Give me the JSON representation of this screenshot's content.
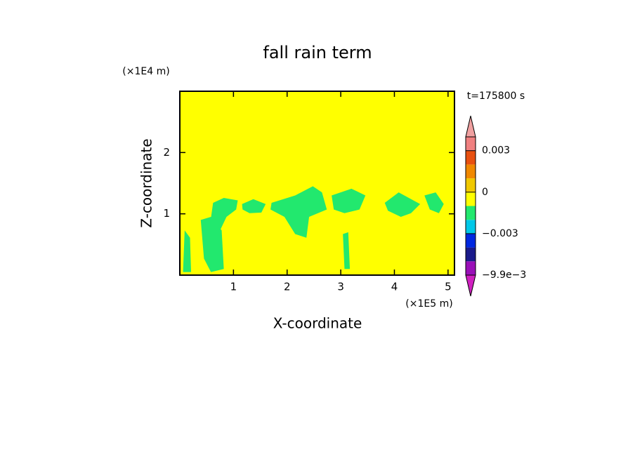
{
  "chart_data": {
    "type": "contour",
    "title": "fall rain term",
    "x_label": "X-coordinate",
    "y_label": "Z-coordinate",
    "x_unit": "(×1E5 m)",
    "y_unit": "(×1E4 m)",
    "time_label": "t=175800 s",
    "xlim": [
      0,
      5.12
    ],
    "ylim": [
      0,
      3
    ],
    "xticks": [
      1,
      2,
      3,
      4,
      5
    ],
    "yticks": [
      1,
      2
    ],
    "background_color": "#ffff00",
    "regions": [
      {
        "color": "#22e86e",
        "x": [
          0.62,
          0.82,
          1.08,
          1.05,
          0.87,
          0.75,
          0.65,
          0.58
        ],
        "z": [
          1.18,
          1.26,
          1.22,
          1.07,
          0.95,
          0.73,
          0.61,
          0.93
        ]
      },
      {
        "color": "#22e86e",
        "x": [
          0.39,
          0.58,
          0.78,
          0.82,
          0.58,
          0.45
        ],
        "z": [
          0.9,
          0.95,
          0.73,
          0.1,
          0.05,
          0.27
        ]
      },
      {
        "color": "#22e86e",
        "x": [
          0.09,
          0.19,
          0.21,
          0.06
        ],
        "z": [
          0.73,
          0.61,
          0.05,
          0.05
        ]
      },
      {
        "color": "#22e86e",
        "x": [
          1.16,
          1.37,
          1.6,
          1.52,
          1.3,
          1.17
        ],
        "z": [
          1.16,
          1.24,
          1.16,
          1.02,
          1.01,
          1.07
        ]
      },
      {
        "color": "#22e86e",
        "x": [
          1.71,
          2.15,
          2.48,
          2.65,
          2.74,
          2.41,
          2.36,
          2.15,
          1.95,
          1.69
        ],
        "z": [
          1.18,
          1.3,
          1.45,
          1.35,
          1.07,
          0.95,
          0.61,
          0.67,
          0.95,
          1.07
        ]
      },
      {
        "color": "#22e86e",
        "x": [
          2.83,
          3.2,
          3.46,
          3.35,
          3.07,
          2.87
        ],
        "z": [
          1.3,
          1.41,
          1.3,
          1.07,
          1.01,
          1.07
        ]
      },
      {
        "color": "#22e86e",
        "x": [
          3.04,
          3.14,
          3.17,
          3.07
        ],
        "z": [
          0.67,
          0.7,
          0.1,
          0.1
        ]
      },
      {
        "color": "#22e86e",
        "x": [
          3.82,
          4.08,
          4.48,
          4.31,
          4.12,
          3.88
        ],
        "z": [
          1.18,
          1.35,
          1.16,
          1.01,
          0.95,
          1.05
        ]
      },
      {
        "color": "#22e86e",
        "x": [
          4.56,
          4.77,
          4.92,
          4.83,
          4.66
        ],
        "z": [
          1.3,
          1.35,
          1.16,
          1.01,
          1.07
        ]
      }
    ],
    "colorbar": {
      "levels": [
        -0.0099,
        -0.006,
        -0.004,
        -0.003,
        -0.002,
        -0.001,
        0,
        0.001,
        0.002,
        0.003,
        0.004
      ],
      "colors": [
        "#9a10b8",
        "#1a1a8a",
        "#0028e0",
        "#00c8e8",
        "#22e86e",
        "#ffff00",
        "#f0c800",
        "#f08800",
        "#e85010",
        "#f08080"
      ],
      "below_color": "#d020c0",
      "above_color": "#f0a0a0",
      "ticks": [
        {
          "value": 0.003,
          "label": "0.003"
        },
        0,
        {
          "value": -0.003,
          "label": "−0.003"
        },
        {
          "value": -0.0099,
          "label": "−9.9e−3"
        }
      ]
    }
  }
}
